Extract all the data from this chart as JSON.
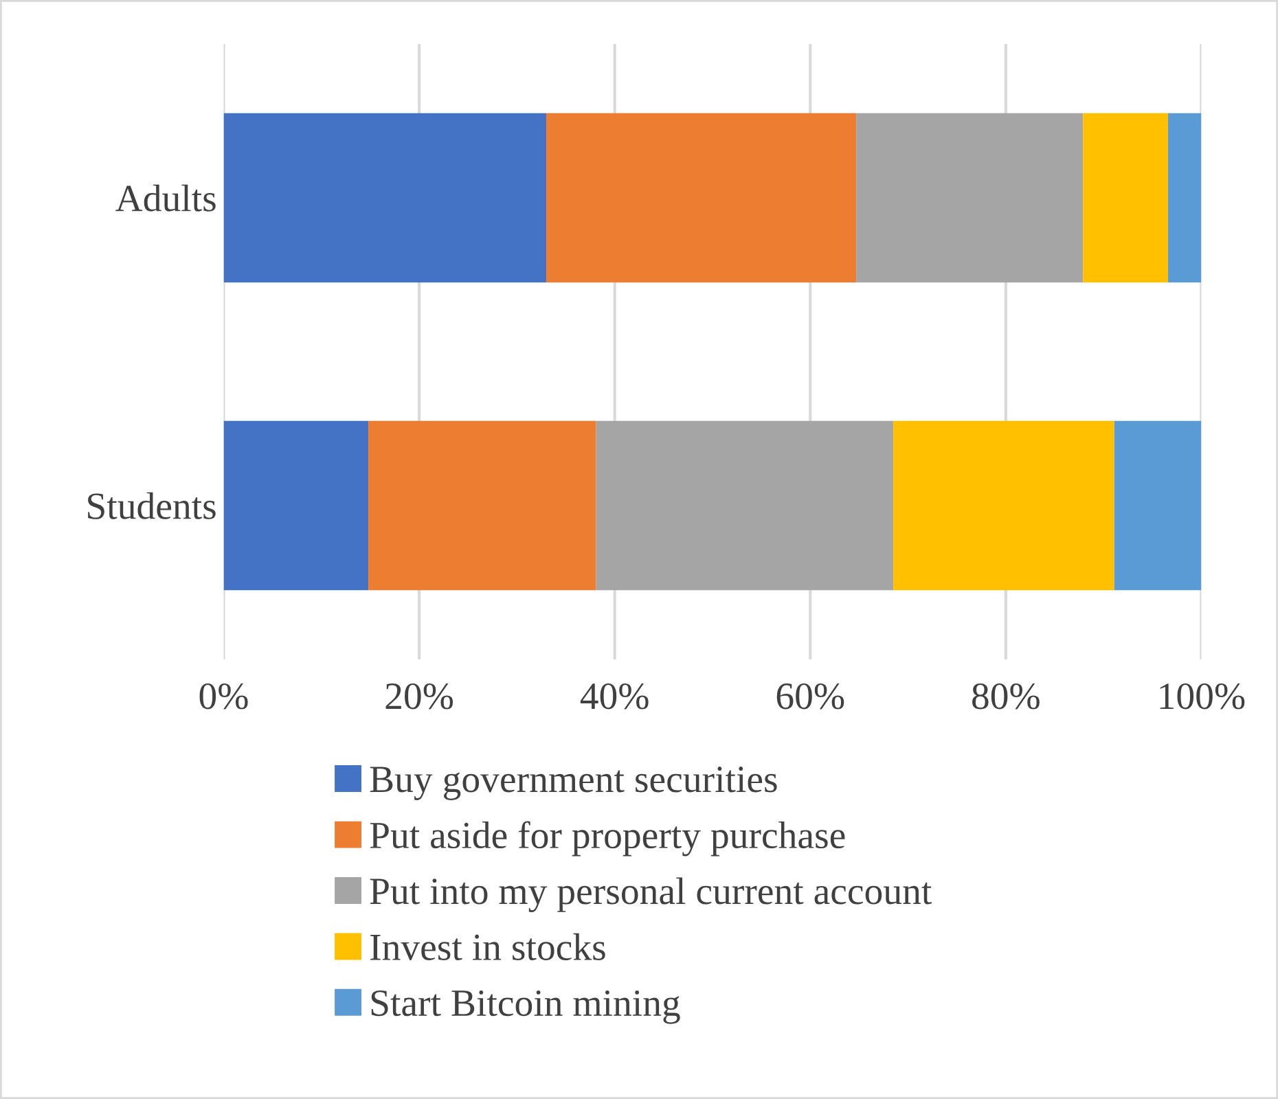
{
  "chart_data": {
    "type": "bar",
    "orientation": "horizontal",
    "stacked": true,
    "categories": [
      "Adults",
      "Students"
    ],
    "series": [
      {
        "name": "Buy government securities",
        "color": "#4472c4",
        "values": [
          33.0,
          14.8
        ]
      },
      {
        "name": "Put aside for property purchase",
        "color": "#ed7d31",
        "values": [
          31.7,
          23.3
        ]
      },
      {
        "name": "Put into my personal current account",
        "color": "#a5a5a5",
        "values": [
          23.2,
          30.4
        ]
      },
      {
        "name": "Invest in stocks",
        "color": "#ffc000",
        "values": [
          8.7,
          22.6
        ]
      },
      {
        "name": "Start Bitcoin mining",
        "color": "#5b9bd5",
        "values": [
          3.4,
          8.9
        ]
      }
    ],
    "xlim": [
      0,
      100
    ],
    "xticks": [
      {
        "value": 0,
        "label": "0%"
      },
      {
        "value": 20,
        "label": "20%"
      },
      {
        "value": 40,
        "label": "40%"
      },
      {
        "value": 60,
        "label": "60%"
      },
      {
        "value": 80,
        "label": "80%"
      },
      {
        "value": 100,
        "label": "100%"
      }
    ],
    "grid": "x",
    "legend": "bottom"
  }
}
